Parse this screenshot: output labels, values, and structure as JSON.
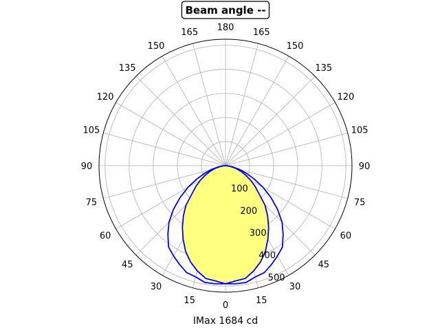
{
  "chart_data": {
    "type": "polar",
    "title": "Beam angle --",
    "xlabel": "IMax 1684 cd",
    "angle_ticks": [
      "0",
      "15",
      "30",
      "45",
      "60",
      "75",
      "90",
      "105",
      "120",
      "135",
      "150",
      "165",
      "180",
      "165",
      "150",
      "135",
      "120",
      "105",
      "90",
      "75",
      "60",
      "45",
      "30",
      "15"
    ],
    "radial_ticks": [
      "100",
      "200",
      "300",
      "400",
      "500"
    ],
    "radial_max": 525,
    "series": [
      {
        "style": "filled",
        "angles_deg": [
          0,
          5,
          10,
          15,
          20,
          25,
          30,
          35,
          40,
          45,
          50,
          55,
          60,
          65,
          70,
          75,
          80,
          85,
          90
        ],
        "values": [
          490,
          480,
          475,
          452,
          425,
          392,
          352,
          312,
          272,
          232,
          182,
          150,
          120,
          92,
          68,
          45,
          25,
          10,
          0
        ]
      },
      {
        "style": "outline",
        "angles_deg": [
          0,
          5,
          10,
          15,
          20,
          25,
          30,
          35,
          40,
          45,
          50,
          55,
          60,
          65,
          70,
          75,
          80,
          85,
          90
        ],
        "values": [
          490,
          492,
          492,
          478,
          472,
          452,
          432,
          412,
          372,
          332,
          282,
          230,
          180,
          132,
          92,
          60,
          32,
          12,
          0
        ]
      }
    ],
    "colors": {
      "outline": "#0000ee",
      "fill": "#ffff80",
      "grid": "#b0b0b0"
    },
    "grid": true
  }
}
